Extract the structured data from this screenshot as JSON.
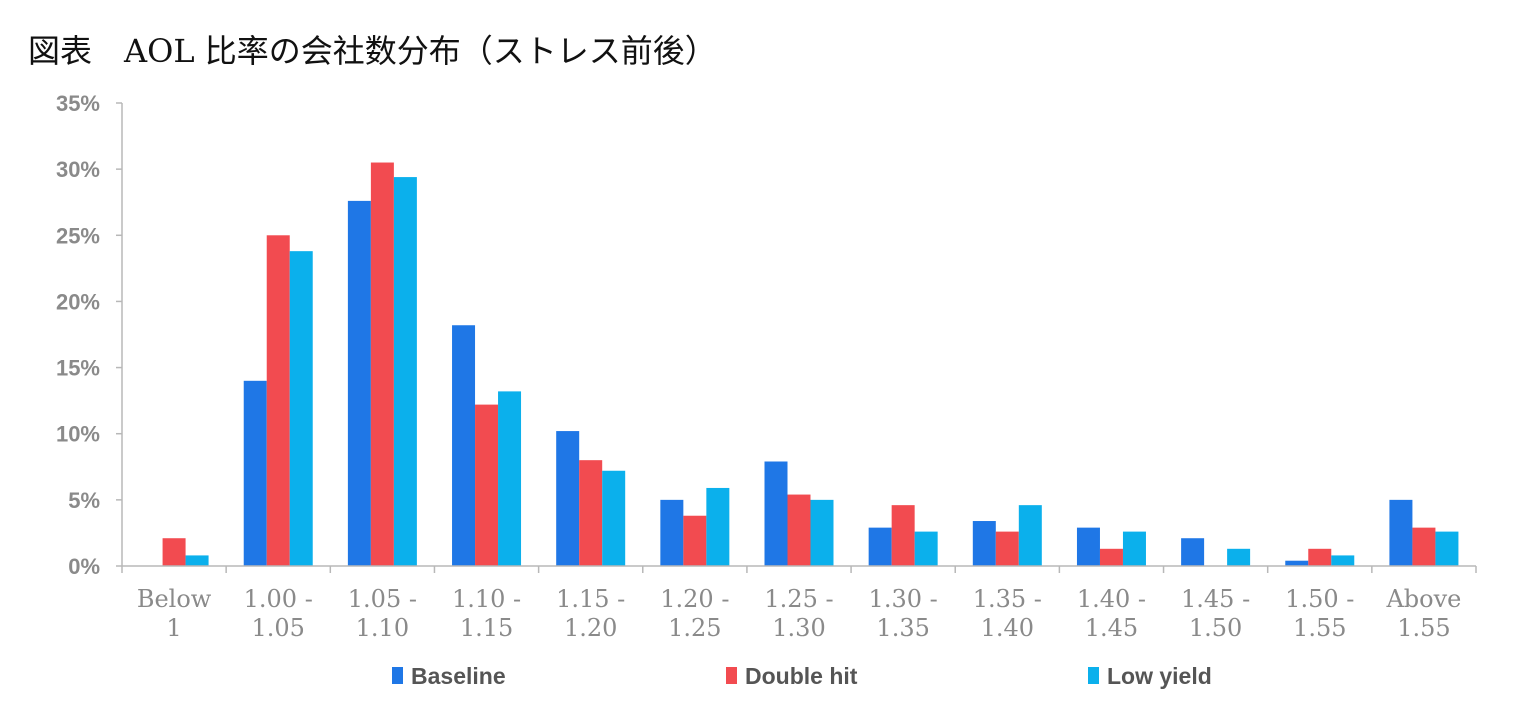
{
  "title": "図表　AOL 比率の会社数分布（ストレス前後）",
  "chart_data": {
    "type": "bar",
    "title": "図表　AOL 比率の会社数分布（ストレス前後）",
    "xlabel": "",
    "ylabel": "",
    "ylim": [
      0,
      35
    ],
    "y_ticks": [
      0,
      5,
      10,
      15,
      20,
      25,
      30,
      35
    ],
    "y_tick_labels": [
      "0%",
      "5%",
      "10%",
      "15%",
      "20%",
      "25%",
      "30%",
      "35%"
    ],
    "categories": [
      [
        "Below",
        "1"
      ],
      [
        "1.00 -",
        "1.05"
      ],
      [
        "1.05 -",
        "1.10"
      ],
      [
        "1.10 -",
        "1.15"
      ],
      [
        "1.15 -",
        "1.20"
      ],
      [
        "1.20 -",
        "1.25"
      ],
      [
        "1.25 -",
        "1.30"
      ],
      [
        "1.30 -",
        "1.35"
      ],
      [
        "1.35 -",
        "1.40"
      ],
      [
        "1.40 -",
        "1.45"
      ],
      [
        "1.45 -",
        "1.50"
      ],
      [
        "1.50 -",
        "1.55"
      ],
      [
        "Above",
        "1.55"
      ]
    ],
    "series": [
      {
        "name": "Baseline",
        "color": "#1f77e6",
        "values": [
          0,
          14.0,
          27.6,
          18.2,
          10.2,
          5.0,
          7.9,
          2.9,
          3.4,
          2.9,
          2.1,
          0.4,
          5.0
        ]
      },
      {
        "name": "Double hit",
        "color": "#f24b50",
        "values": [
          2.1,
          25.0,
          30.5,
          12.2,
          8.0,
          3.8,
          5.4,
          4.6,
          2.6,
          1.3,
          0,
          1.3,
          2.9
        ]
      },
      {
        "name": "Low yield",
        "color": "#0bb0ec",
        "values": [
          0.8,
          23.8,
          29.4,
          13.2,
          7.2,
          5.9,
          5.0,
          2.6,
          4.6,
          2.6,
          1.3,
          0.8,
          2.6
        ]
      }
    ],
    "legend_position": "bottom",
    "grid": false
  }
}
